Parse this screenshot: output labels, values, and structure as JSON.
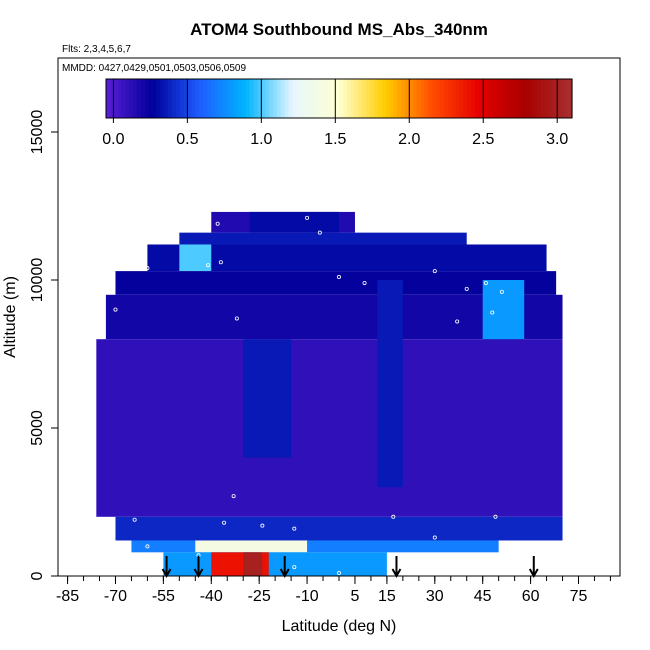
{
  "chart_data": {
    "type": "heatmap",
    "title": "ATOM4 Southbound MS_Abs_340nm",
    "flights_note": "Flts: 2,3,4,5,6,7",
    "dates_note": "MMDD: 0427,0429,0501,0503,0506,0509",
    "xlabel": "Latitude (deg N)",
    "ylabel": "Altitude (m)",
    "xlim": [
      -88,
      88
    ],
    "ylim": [
      0,
      17500
    ],
    "x_ticks": [
      -85,
      -70,
      -55,
      -40,
      -25,
      -10,
      5,
      15,
      30,
      45,
      60,
      75
    ],
    "y_ticks": [
      0,
      5000,
      10000,
      15000
    ],
    "colorbar": {
      "range": [
        -0.05,
        3.1
      ],
      "ticks": [
        0.0,
        0.5,
        1.0,
        1.5,
        2.0,
        2.5,
        3.0
      ],
      "colors": [
        "#5b1fd6",
        "#00009a",
        "#1e5cff",
        "#00b4ff",
        "#e6f6ff",
        "#ffffd0",
        "#ffcc00",
        "#ff4d00",
        "#e60000",
        "#a80000",
        "#a83030"
      ]
    },
    "cells": [
      {
        "lat": [
          -40,
          5
        ],
        "alt": [
          11600,
          12300
        ],
        "value": 0.15
      },
      {
        "lat": [
          -28,
          0
        ],
        "alt": [
          11600,
          12300
        ],
        "value": 0.3
      },
      {
        "lat": [
          -50,
          40
        ],
        "alt": [
          11200,
          11600
        ],
        "value": 0.35
      },
      {
        "lat": [
          -60,
          65
        ],
        "alt": [
          10300,
          11200
        ],
        "value": 0.3
      },
      {
        "lat": [
          -50,
          -40
        ],
        "alt": [
          10300,
          11200
        ],
        "value": 1.0
      },
      {
        "lat": [
          -70,
          68
        ],
        "alt": [
          9500,
          10300
        ],
        "value": 0.25
      },
      {
        "lat": [
          -73,
          70
        ],
        "alt": [
          8000,
          9500
        ],
        "value": 0.2
      },
      {
        "lat": [
          45,
          58
        ],
        "alt": [
          7500,
          10000
        ],
        "value": 0.8
      },
      {
        "lat": [
          -76,
          70
        ],
        "alt": [
          2000,
          8000
        ],
        "value": 0.1
      },
      {
        "lat": [
          -30,
          -15
        ],
        "alt": [
          4000,
          8000
        ],
        "value": 0.35
      },
      {
        "lat": [
          12,
          20
        ],
        "alt": [
          3000,
          10000
        ],
        "value": 0.35
      },
      {
        "lat": [
          -70,
          70
        ],
        "alt": [
          1200,
          2000
        ],
        "value": 0.4
      },
      {
        "lat": [
          -65,
          50
        ],
        "alt": [
          800,
          1200
        ],
        "value": 0.7
      },
      {
        "lat": [
          -45,
          -10
        ],
        "alt": [
          800,
          1200
        ],
        "value": 1.4
      },
      {
        "lat": [
          -55,
          15
        ],
        "alt": [
          0,
          800
        ],
        "value": 0.8
      },
      {
        "lat": [
          -40,
          -22
        ],
        "alt": [
          0,
          800
        ],
        "value": 2.4
      },
      {
        "lat": [
          -30,
          -24
        ],
        "alt": [
          0,
          800
        ],
        "value": 3.0
      }
    ],
    "sample_points": [
      {
        "lat": -38,
        "alt": 11900
      },
      {
        "lat": -10,
        "alt": 12100
      },
      {
        "lat": -6,
        "alt": 11600
      },
      {
        "lat": -60,
        "alt": 10400
      },
      {
        "lat": -41,
        "alt": 10500
      },
      {
        "lat": -37,
        "alt": 10600
      },
      {
        "lat": 0,
        "alt": 10100
      },
      {
        "lat": 8,
        "alt": 9900
      },
      {
        "lat": 30,
        "alt": 10300
      },
      {
        "lat": 40,
        "alt": 9700
      },
      {
        "lat": 46,
        "alt": 9900
      },
      {
        "lat": 51,
        "alt": 9600
      },
      {
        "lat": -82,
        "alt": 9500
      },
      {
        "lat": -70,
        "alt": 9000
      },
      {
        "lat": -75,
        "alt": 8400
      },
      {
        "lat": -32,
        "alt": 8700
      },
      {
        "lat": 37,
        "alt": 8600
      },
      {
        "lat": 48,
        "alt": 8900
      },
      {
        "lat": 73,
        "alt": 5100
      },
      {
        "lat": -33,
        "alt": 2700
      },
      {
        "lat": -64,
        "alt": 1900
      },
      {
        "lat": -36,
        "alt": 1800
      },
      {
        "lat": -24,
        "alt": 1700
      },
      {
        "lat": -14,
        "alt": 1600
      },
      {
        "lat": 17,
        "alt": 2000
      },
      {
        "lat": 49,
        "alt": 2000
      },
      {
        "lat": 30,
        "alt": 1300
      },
      {
        "lat": 71,
        "alt": 1100
      },
      {
        "lat": -60,
        "alt": 1000
      },
      {
        "lat": -44,
        "alt": 700
      },
      {
        "lat": -68,
        "alt": 400
      },
      {
        "lat": -63,
        "alt": 300
      },
      {
        "lat": -56,
        "alt": 200
      },
      {
        "lat": -14,
        "alt": 300
      },
      {
        "lat": 0,
        "alt": 100
      }
    ],
    "flight_markers_lat": [
      -54,
      -44,
      -17,
      18,
      61
    ]
  }
}
